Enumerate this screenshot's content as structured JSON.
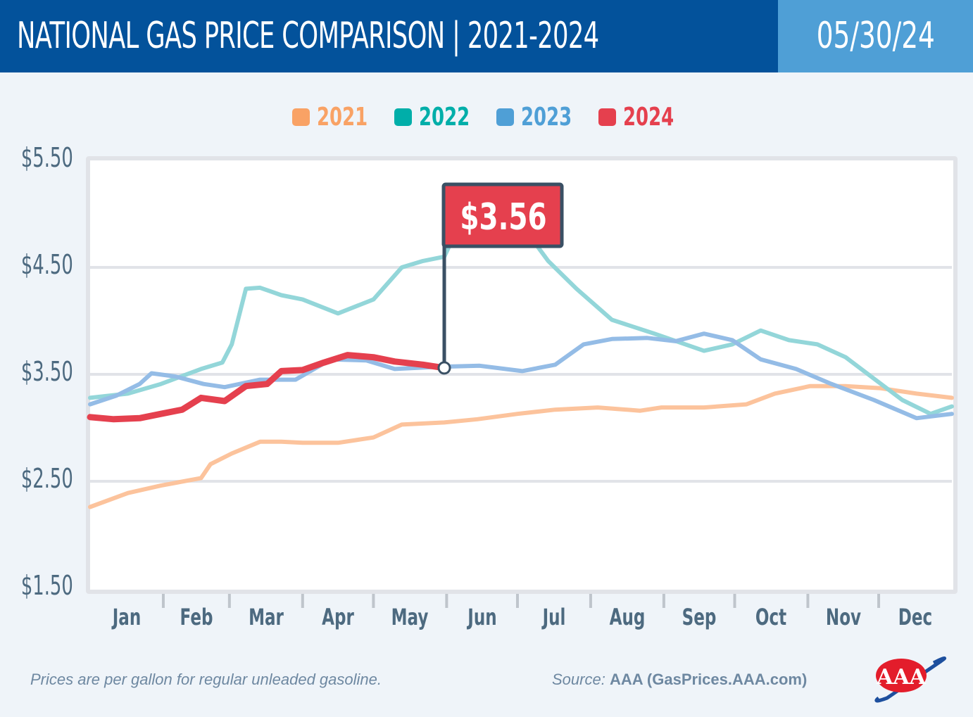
{
  "header": {
    "title": "NATIONAL GAS PRICE COMPARISON | 2021-2024",
    "date": "05/30/24"
  },
  "colors": {
    "header_bg": "#03529b",
    "date_bg": "#4f9fd6",
    "flag": "#e5404e",
    "flag_pole": "#3a5064"
  },
  "footer": {
    "note": "Prices are per gallon for regular unleaded gasoline.",
    "source_prefix": "Source:",
    "source_name": "AAA (GasPrices.AAA.com)",
    "logo": "aaa-logo"
  },
  "chart_data": {
    "type": "line",
    "title": "NATIONAL GAS PRICE COMPARISON | 2021-2024",
    "xlabel": "",
    "ylabel": "",
    "x_unit": "day of year",
    "xlim": [
      0,
      365
    ],
    "ylim": [
      1.5,
      5.5
    ],
    "yticks": [
      1.5,
      2.5,
      3.5,
      4.5,
      5.5
    ],
    "ytick_labels": [
      "$1.50",
      "$2.50",
      "$3.50",
      "$4.50",
      "$5.50"
    ],
    "months": [
      "Jan",
      "Feb",
      "Mar",
      "Apr",
      "May",
      "Jun",
      "Jul",
      "Aug",
      "Sep",
      "Oct",
      "Nov",
      "Dec"
    ],
    "month_starts": [
      0,
      31,
      59,
      90,
      120,
      151,
      181,
      212,
      243,
      273,
      304,
      334
    ],
    "grid": true,
    "legend_position": "top-center",
    "annotation": {
      "label": "$3.56",
      "series": "2024",
      "day": 150,
      "value": 3.56
    },
    "series": [
      {
        "name": "2021",
        "color": "#f9a265",
        "line_color": "#fcc39c",
        "points": [
          [
            0,
            2.26
          ],
          [
            16,
            2.39
          ],
          [
            30,
            2.46
          ],
          [
            47,
            2.53
          ],
          [
            51,
            2.66
          ],
          [
            60,
            2.76
          ],
          [
            72,
            2.87
          ],
          [
            81,
            2.87
          ],
          [
            90,
            2.86
          ],
          [
            105,
            2.86
          ],
          [
            120,
            2.91
          ],
          [
            132,
            3.03
          ],
          [
            150,
            3.05
          ],
          [
            164,
            3.08
          ],
          [
            181,
            3.13
          ],
          [
            197,
            3.17
          ],
          [
            215,
            3.19
          ],
          [
            233,
            3.16
          ],
          [
            242,
            3.19
          ],
          [
            260,
            3.19
          ],
          [
            278,
            3.22
          ],
          [
            290,
            3.32
          ],
          [
            305,
            3.39
          ],
          [
            320,
            3.39
          ],
          [
            335,
            3.37
          ],
          [
            350,
            3.32
          ],
          [
            365,
            3.28
          ]
        ]
      },
      {
        "name": "2022",
        "color": "#00aea9",
        "line_color": "#93d6d9",
        "points": [
          [
            0,
            3.28
          ],
          [
            16,
            3.32
          ],
          [
            30,
            3.41
          ],
          [
            47,
            3.55
          ],
          [
            56,
            3.61
          ],
          [
            60,
            3.78
          ],
          [
            66,
            4.3
          ],
          [
            72,
            4.31
          ],
          [
            81,
            4.24
          ],
          [
            90,
            4.2
          ],
          [
            105,
            4.07
          ],
          [
            120,
            4.2
          ],
          [
            132,
            4.5
          ],
          [
            141,
            4.56
          ],
          [
            150,
            4.6
          ],
          [
            159,
            5.02
          ],
          [
            171,
            5.09
          ],
          [
            183,
            4.89
          ],
          [
            194,
            4.56
          ],
          [
            206,
            4.3
          ],
          [
            221,
            4.01
          ],
          [
            239,
            3.88
          ],
          [
            260,
            3.72
          ],
          [
            272,
            3.78
          ],
          [
            284,
            3.91
          ],
          [
            296,
            3.82
          ],
          [
            308,
            3.78
          ],
          [
            320,
            3.66
          ],
          [
            332,
            3.46
          ],
          [
            344,
            3.26
          ],
          [
            356,
            3.13
          ],
          [
            365,
            3.2
          ]
        ]
      },
      {
        "name": "2023",
        "color": "#4f9fd6",
        "line_color": "#94bce6",
        "points": [
          [
            0,
            3.22
          ],
          [
            11,
            3.3
          ],
          [
            21,
            3.41
          ],
          [
            26,
            3.51
          ],
          [
            36,
            3.48
          ],
          [
            48,
            3.41
          ],
          [
            57,
            3.38
          ],
          [
            72,
            3.45
          ],
          [
            87,
            3.45
          ],
          [
            102,
            3.64
          ],
          [
            117,
            3.63
          ],
          [
            129,
            3.55
          ],
          [
            147,
            3.57
          ],
          [
            165,
            3.58
          ],
          [
            183,
            3.53
          ],
          [
            197,
            3.59
          ],
          [
            209,
            3.78
          ],
          [
            221,
            3.83
          ],
          [
            236,
            3.84
          ],
          [
            248,
            3.81
          ],
          [
            260,
            3.88
          ],
          [
            272,
            3.82
          ],
          [
            284,
            3.64
          ],
          [
            299,
            3.55
          ],
          [
            314,
            3.41
          ],
          [
            332,
            3.26
          ],
          [
            350,
            3.09
          ],
          [
            365,
            3.13
          ]
        ]
      },
      {
        "name": "2024",
        "color": "#e5404e",
        "line_color": "#e5404e",
        "points": [
          [
            0,
            3.1
          ],
          [
            10,
            3.08
          ],
          [
            21,
            3.09
          ],
          [
            30,
            3.13
          ],
          [
            39,
            3.17
          ],
          [
            47,
            3.28
          ],
          [
            57,
            3.25
          ],
          [
            66,
            3.39
          ],
          [
            75,
            3.41
          ],
          [
            81,
            3.53
          ],
          [
            90,
            3.54
          ],
          [
            99,
            3.61
          ],
          [
            109,
            3.68
          ],
          [
            120,
            3.66
          ],
          [
            129,
            3.62
          ],
          [
            141,
            3.59
          ],
          [
            150,
            3.56
          ]
        ]
      }
    ]
  }
}
